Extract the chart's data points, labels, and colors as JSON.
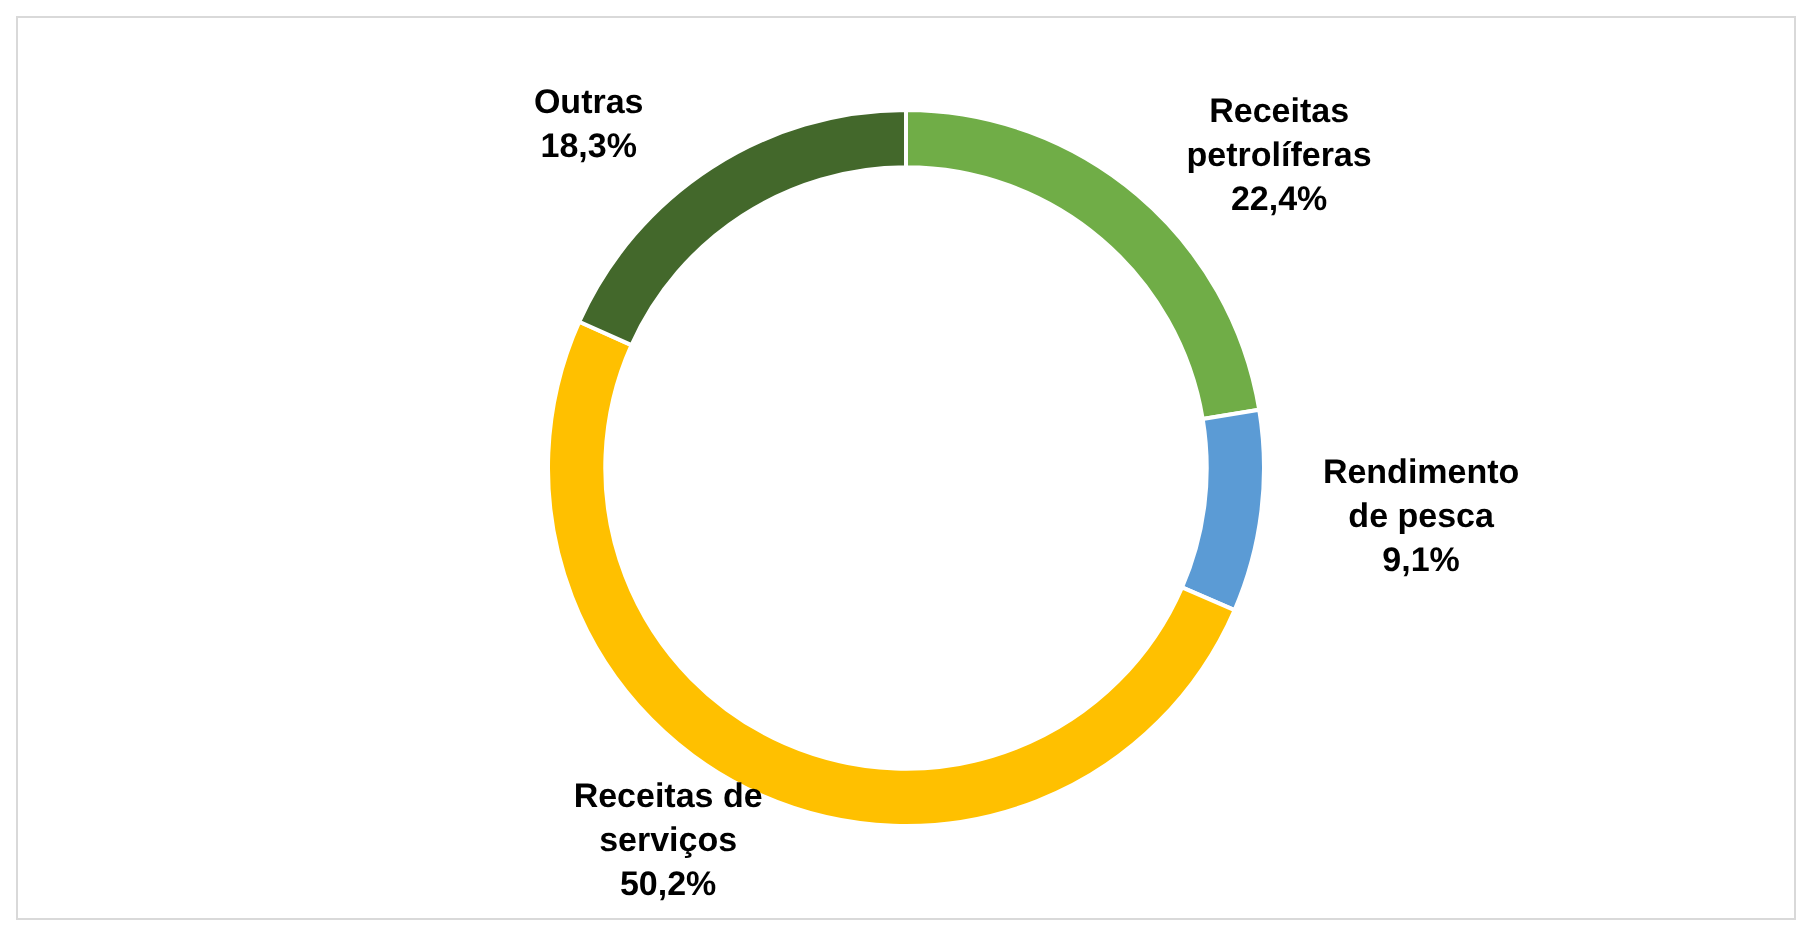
{
  "chart_data": {
    "type": "donut",
    "categories": [
      "Receitas petrolíferas",
      "Rendimento de pesca",
      "Receitas de serviços",
      "Outras"
    ],
    "values": [
      22.4,
      9.1,
      50.2,
      18.3
    ],
    "value_labels": [
      "22,4%",
      "9,1%",
      "50,2%",
      "18,3%"
    ],
    "colors": [
      "#70ad47",
      "#5b9bd5",
      "#ffc000",
      "#43682b"
    ],
    "legend": false
  }
}
